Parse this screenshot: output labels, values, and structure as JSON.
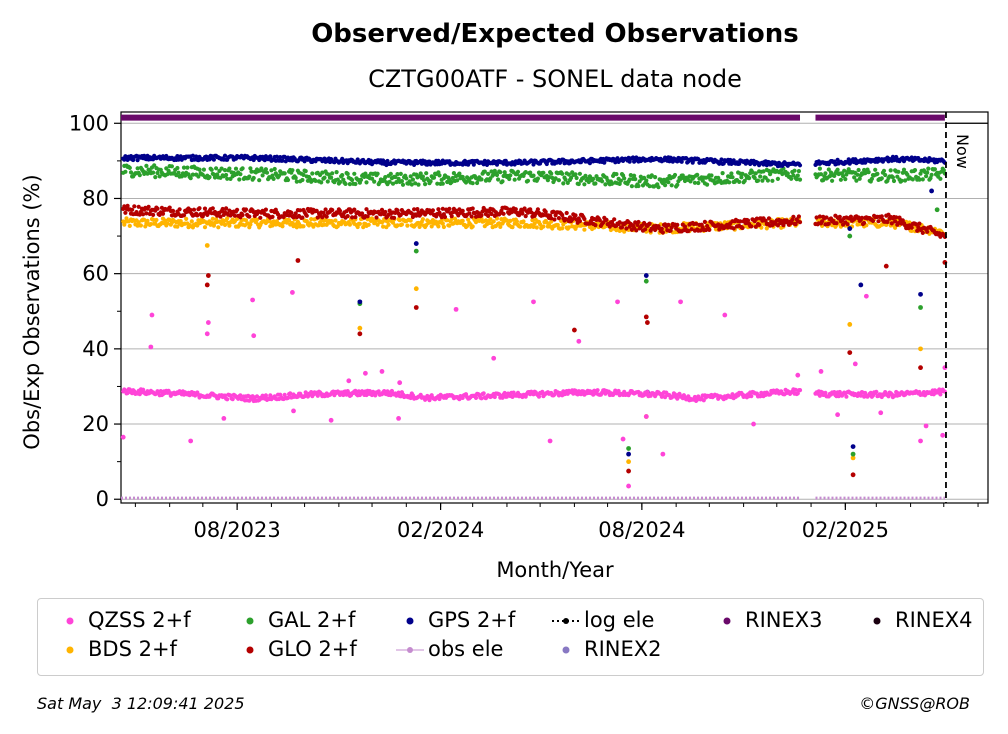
{
  "chart_data": {
    "type": "scatter",
    "title": "Observed/Expected Observations",
    "subtitle": "CZTG00ATF - SONEL data node",
    "xlabel": "Month/Year",
    "ylabel": "Obs/Exp Observations (%)",
    "xlim": [
      "2023-04-18",
      "2025-06-10"
    ],
    "ylim": [
      -1,
      103
    ],
    "yticks": [
      0,
      20,
      40,
      60,
      80,
      100
    ],
    "xticks": [
      "2023-08-01",
      "2024-02-01",
      "2024-08-01",
      "2025-02-01"
    ],
    "xtick_labels": [
      "08/2023",
      "02/2024",
      "08/2024",
      "02/2025"
    ],
    "grid": "horizontal",
    "now_date": "2025-05-03",
    "now_label": "Now",
    "data_gap": [
      "2024-12-22",
      "2025-01-05"
    ],
    "series": [
      {
        "name": "QZSS 2+f",
        "color": "#ff44d8",
        "typical": [
          [
            "2023-04-20",
            28.8
          ],
          [
            "2023-06-15",
            28.0
          ],
          [
            "2023-08-15",
            26.8
          ],
          [
            "2023-10-15",
            28.0
          ],
          [
            "2023-12-15",
            28.3
          ],
          [
            "2024-01-20",
            27.0
          ],
          [
            "2024-03-15",
            27.5
          ],
          [
            "2024-06-15",
            28.5
          ],
          [
            "2024-08-20",
            27.8
          ],
          [
            "2024-09-20",
            26.8
          ],
          [
            "2024-12-15",
            28.6
          ],
          [
            "2025-01-15",
            28.0
          ],
          [
            "2025-03-15",
            27.8
          ],
          [
            "2025-05-02",
            28.6
          ]
        ],
        "outliers": [
          [
            "2023-04-20",
            16.5
          ],
          [
            "2023-05-15",
            40.5
          ],
          [
            "2023-05-16",
            49.0
          ],
          [
            "2023-06-20",
            15.5
          ],
          [
            "2023-07-05",
            44.0
          ],
          [
            "2023-07-06",
            47.0
          ],
          [
            "2023-07-20",
            21.5
          ],
          [
            "2023-08-15",
            53.0
          ],
          [
            "2023-08-16",
            43.5
          ],
          [
            "2023-09-20",
            55.0
          ],
          [
            "2023-09-21",
            23.5
          ],
          [
            "2023-10-25",
            21.0
          ],
          [
            "2023-11-10",
            31.5
          ],
          [
            "2023-11-25",
            33.5
          ],
          [
            "2023-12-10",
            34.0
          ],
          [
            "2023-12-25",
            21.5
          ],
          [
            "2023-12-26",
            31.0
          ],
          [
            "2024-02-15",
            50.5
          ],
          [
            "2024-03-20",
            37.5
          ],
          [
            "2024-04-25",
            52.5
          ],
          [
            "2024-05-10",
            15.5
          ],
          [
            "2024-06-05",
            42.0
          ],
          [
            "2024-07-10",
            52.5
          ],
          [
            "2024-07-15",
            16.0
          ],
          [
            "2024-07-20",
            3.5
          ],
          [
            "2024-08-05",
            22.0
          ],
          [
            "2024-08-20",
            12.0
          ],
          [
            "2024-09-05",
            52.5
          ],
          [
            "2024-10-15",
            49.0
          ],
          [
            "2024-11-10",
            20.0
          ],
          [
            "2024-12-20",
            33.0
          ],
          [
            "2025-01-10",
            34.0
          ],
          [
            "2025-01-25",
            22.5
          ],
          [
            "2025-02-10",
            36.0
          ],
          [
            "2025-02-20",
            54.0
          ],
          [
            "2025-03-05",
            23.0
          ],
          [
            "2025-04-10",
            15.5
          ],
          [
            "2025-04-15",
            19.5
          ],
          [
            "2025-04-30",
            17.0
          ],
          [
            "2025-05-02",
            35.0
          ]
        ]
      },
      {
        "name": "GAL 2+f",
        "color": "#2ca02c",
        "typical": [
          [
            "2023-04-20",
            87.5
          ],
          [
            "2023-08-15",
            86.5
          ],
          [
            "2023-12-15",
            85.0
          ],
          [
            "2024-04-15",
            86.0
          ],
          [
            "2024-08-15",
            84.5
          ],
          [
            "2024-12-15",
            86.5
          ],
          [
            "2025-03-15",
            86.0
          ],
          [
            "2025-05-02",
            86.5
          ]
        ],
        "outliers": [
          [
            "2023-11-20",
            52.0
          ],
          [
            "2024-01-10",
            66.0
          ],
          [
            "2024-07-20",
            13.5
          ],
          [
            "2024-08-05",
            58.0
          ],
          [
            "2025-02-05",
            70.0
          ],
          [
            "2025-02-08",
            12.0
          ],
          [
            "2025-04-10",
            51.0
          ],
          [
            "2025-04-25",
            77.0
          ]
        ]
      },
      {
        "name": "GPS 2+f",
        "color": "#00008b",
        "typical": [
          [
            "2023-04-20",
            90.8
          ],
          [
            "2023-08-15",
            90.8
          ],
          [
            "2023-12-15",
            89.5
          ],
          [
            "2024-04-15",
            89.5
          ],
          [
            "2024-08-15",
            90.5
          ],
          [
            "2024-12-15",
            89.0
          ],
          [
            "2025-03-15",
            90.5
          ],
          [
            "2025-05-02",
            90.0
          ]
        ],
        "outliers": [
          [
            "2023-11-20",
            52.5
          ],
          [
            "2024-01-10",
            68.0
          ],
          [
            "2024-07-20",
            12.0
          ],
          [
            "2024-08-05",
            59.5
          ],
          [
            "2024-08-06",
            28.5
          ],
          [
            "2025-02-05",
            72.0
          ],
          [
            "2025-02-08",
            14.0
          ],
          [
            "2025-02-15",
            57.0
          ],
          [
            "2025-04-10",
            54.5
          ],
          [
            "2025-04-20",
            82.0
          ]
        ]
      },
      {
        "name": "log ele",
        "color": "#000000",
        "typical": [],
        "outliers": []
      },
      {
        "name": "RINEX3",
        "color": "#6a0a6a",
        "level": 101.5,
        "ranges": [
          [
            "2023-04-18",
            "2024-12-22"
          ],
          [
            "2025-01-05",
            "2025-05-02"
          ]
        ]
      },
      {
        "name": "RINEX4",
        "color": "#1a0010",
        "typical": [],
        "outliers": []
      },
      {
        "name": "BDS 2+f",
        "color": "#ffb400",
        "typical": [
          [
            "2023-04-20",
            73.5
          ],
          [
            "2023-08-15",
            73.5
          ],
          [
            "2023-12-15",
            73.5
          ],
          [
            "2024-04-15",
            73.5
          ],
          [
            "2024-08-15",
            72.0
          ],
          [
            "2024-12-15",
            73.5
          ],
          [
            "2025-03-15",
            73.5
          ],
          [
            "2025-05-02",
            71.0
          ]
        ],
        "outliers": [
          [
            "2023-07-05",
            67.5
          ],
          [
            "2023-11-20",
            45.5
          ],
          [
            "2024-01-10",
            56.0
          ],
          [
            "2024-07-20",
            10.0
          ],
          [
            "2024-08-05",
            22.0
          ],
          [
            "2025-02-05",
            46.5
          ],
          [
            "2025-02-08",
            11.0
          ],
          [
            "2025-04-10",
            40.0
          ]
        ]
      },
      {
        "name": "GLO 2+f",
        "color": "#b40000",
        "typical": [
          [
            "2023-04-20",
            77.0
          ],
          [
            "2023-08-15",
            76.0
          ],
          [
            "2023-12-15",
            76.0
          ],
          [
            "2024-04-15",
            76.5
          ],
          [
            "2024-08-15",
            72.0
          ],
          [
            "2024-12-15",
            74.0
          ],
          [
            "2025-03-15",
            74.5
          ],
          [
            "2025-05-02",
            70.0
          ]
        ],
        "outliers": [
          [
            "2023-07-05",
            57.0
          ],
          [
            "2023-07-06",
            59.5
          ],
          [
            "2023-09-25",
            63.5
          ],
          [
            "2023-11-20",
            44.0
          ],
          [
            "2024-01-10",
            51.0
          ],
          [
            "2024-06-01",
            45.0
          ],
          [
            "2024-07-20",
            7.5
          ],
          [
            "2024-08-05",
            48.5
          ],
          [
            "2024-08-06",
            47.0
          ],
          [
            "2025-02-05",
            39.0
          ],
          [
            "2025-02-08",
            6.5
          ],
          [
            "2025-03-10",
            62.0
          ],
          [
            "2025-04-10",
            35.0
          ],
          [
            "2025-05-02",
            63.0
          ]
        ]
      },
      {
        "name": "obs ele",
        "color": "#c58ccf",
        "level": 0.3,
        "ranges": [
          [
            "2023-04-18",
            "2024-12-22"
          ],
          [
            "2025-01-05",
            "2025-05-02"
          ]
        ]
      },
      {
        "name": "RINEX2",
        "color": "#8878c3",
        "typical": [],
        "outliers": []
      }
    ],
    "legend": {
      "placement": "bottom"
    }
  },
  "footer": {
    "timestamp": "Sat May  3 12:09:41 2025",
    "copyright": "©GNSS@ROB"
  }
}
